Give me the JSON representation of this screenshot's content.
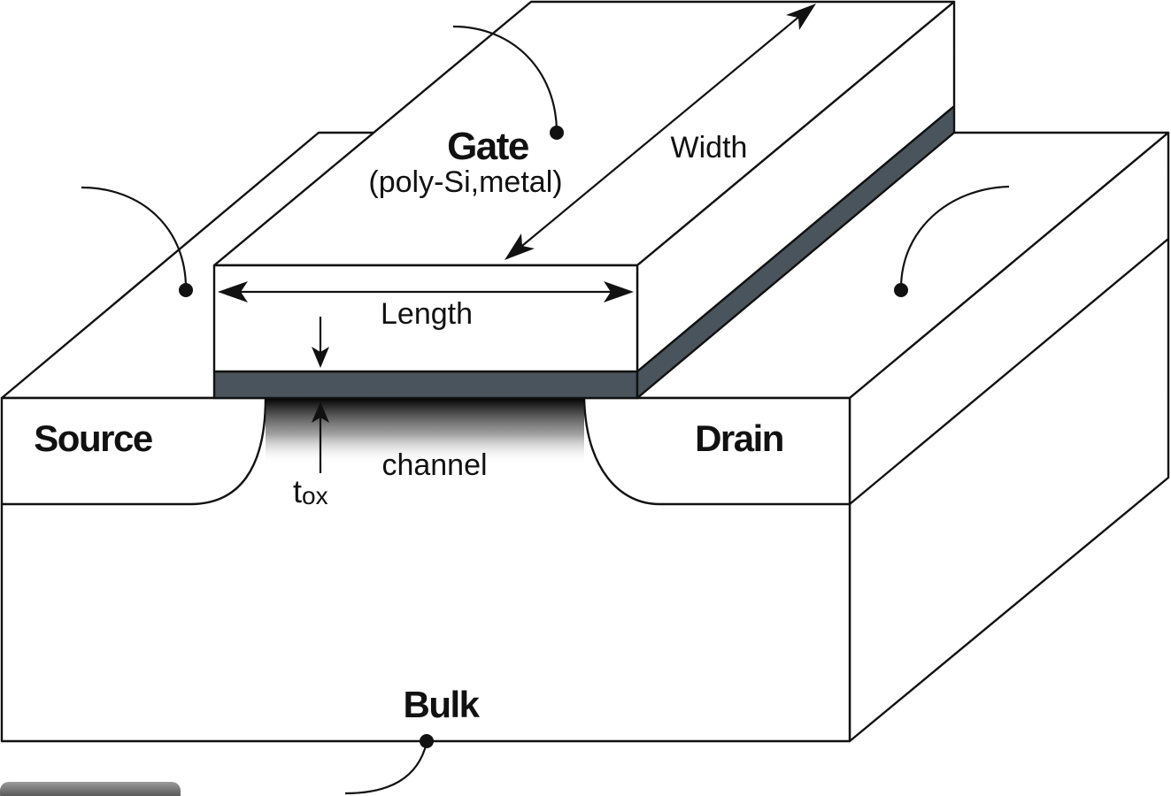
{
  "colors": {
    "oxide": "#4a545c",
    "outline": "#111111",
    "background": "#ffffff"
  },
  "labels": {
    "gate": "Gate",
    "gate_material": "(poly-Si,metal)",
    "width": "Width",
    "length": "Length",
    "tox_main": "t",
    "tox_sub": "ox",
    "channel": "channel",
    "source": "Source",
    "drain": "Drain",
    "bulk": "Bulk"
  }
}
